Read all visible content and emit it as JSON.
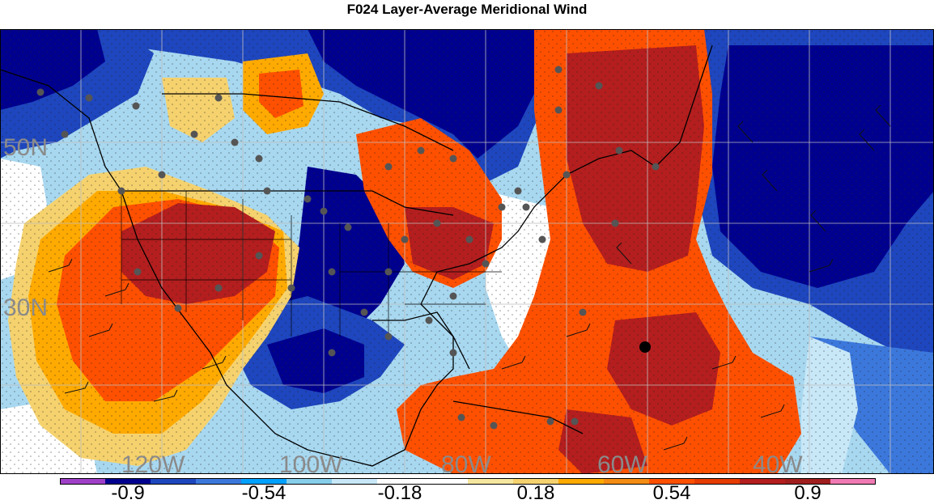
{
  "title": "F024 Layer-Average Meridional Wind",
  "map": {
    "lat_labels": [
      "50N",
      "30N"
    ],
    "lon_labels": [
      "120W",
      "100W",
      "80W",
      "60W",
      "40W"
    ]
  },
  "colorbar": {
    "colors": [
      "#a040c8",
      "#00008f",
      "#1e46be",
      "#3c78dc",
      "#00a0ff",
      "#87ceeb",
      "#c8e8f8",
      "#ffffff",
      "#ffffff",
      "#f6e7a0",
      "#f5d26e",
      "#ffaa00",
      "#f58c14",
      "#ff5000",
      "#e63c00",
      "#b41e1e",
      "#a01e1e",
      "#f07ab4"
    ],
    "tick_labels": [
      "-0.9",
      "-0.54",
      "-0.18",
      "0.18",
      "0.54",
      "0.9"
    ]
  }
}
